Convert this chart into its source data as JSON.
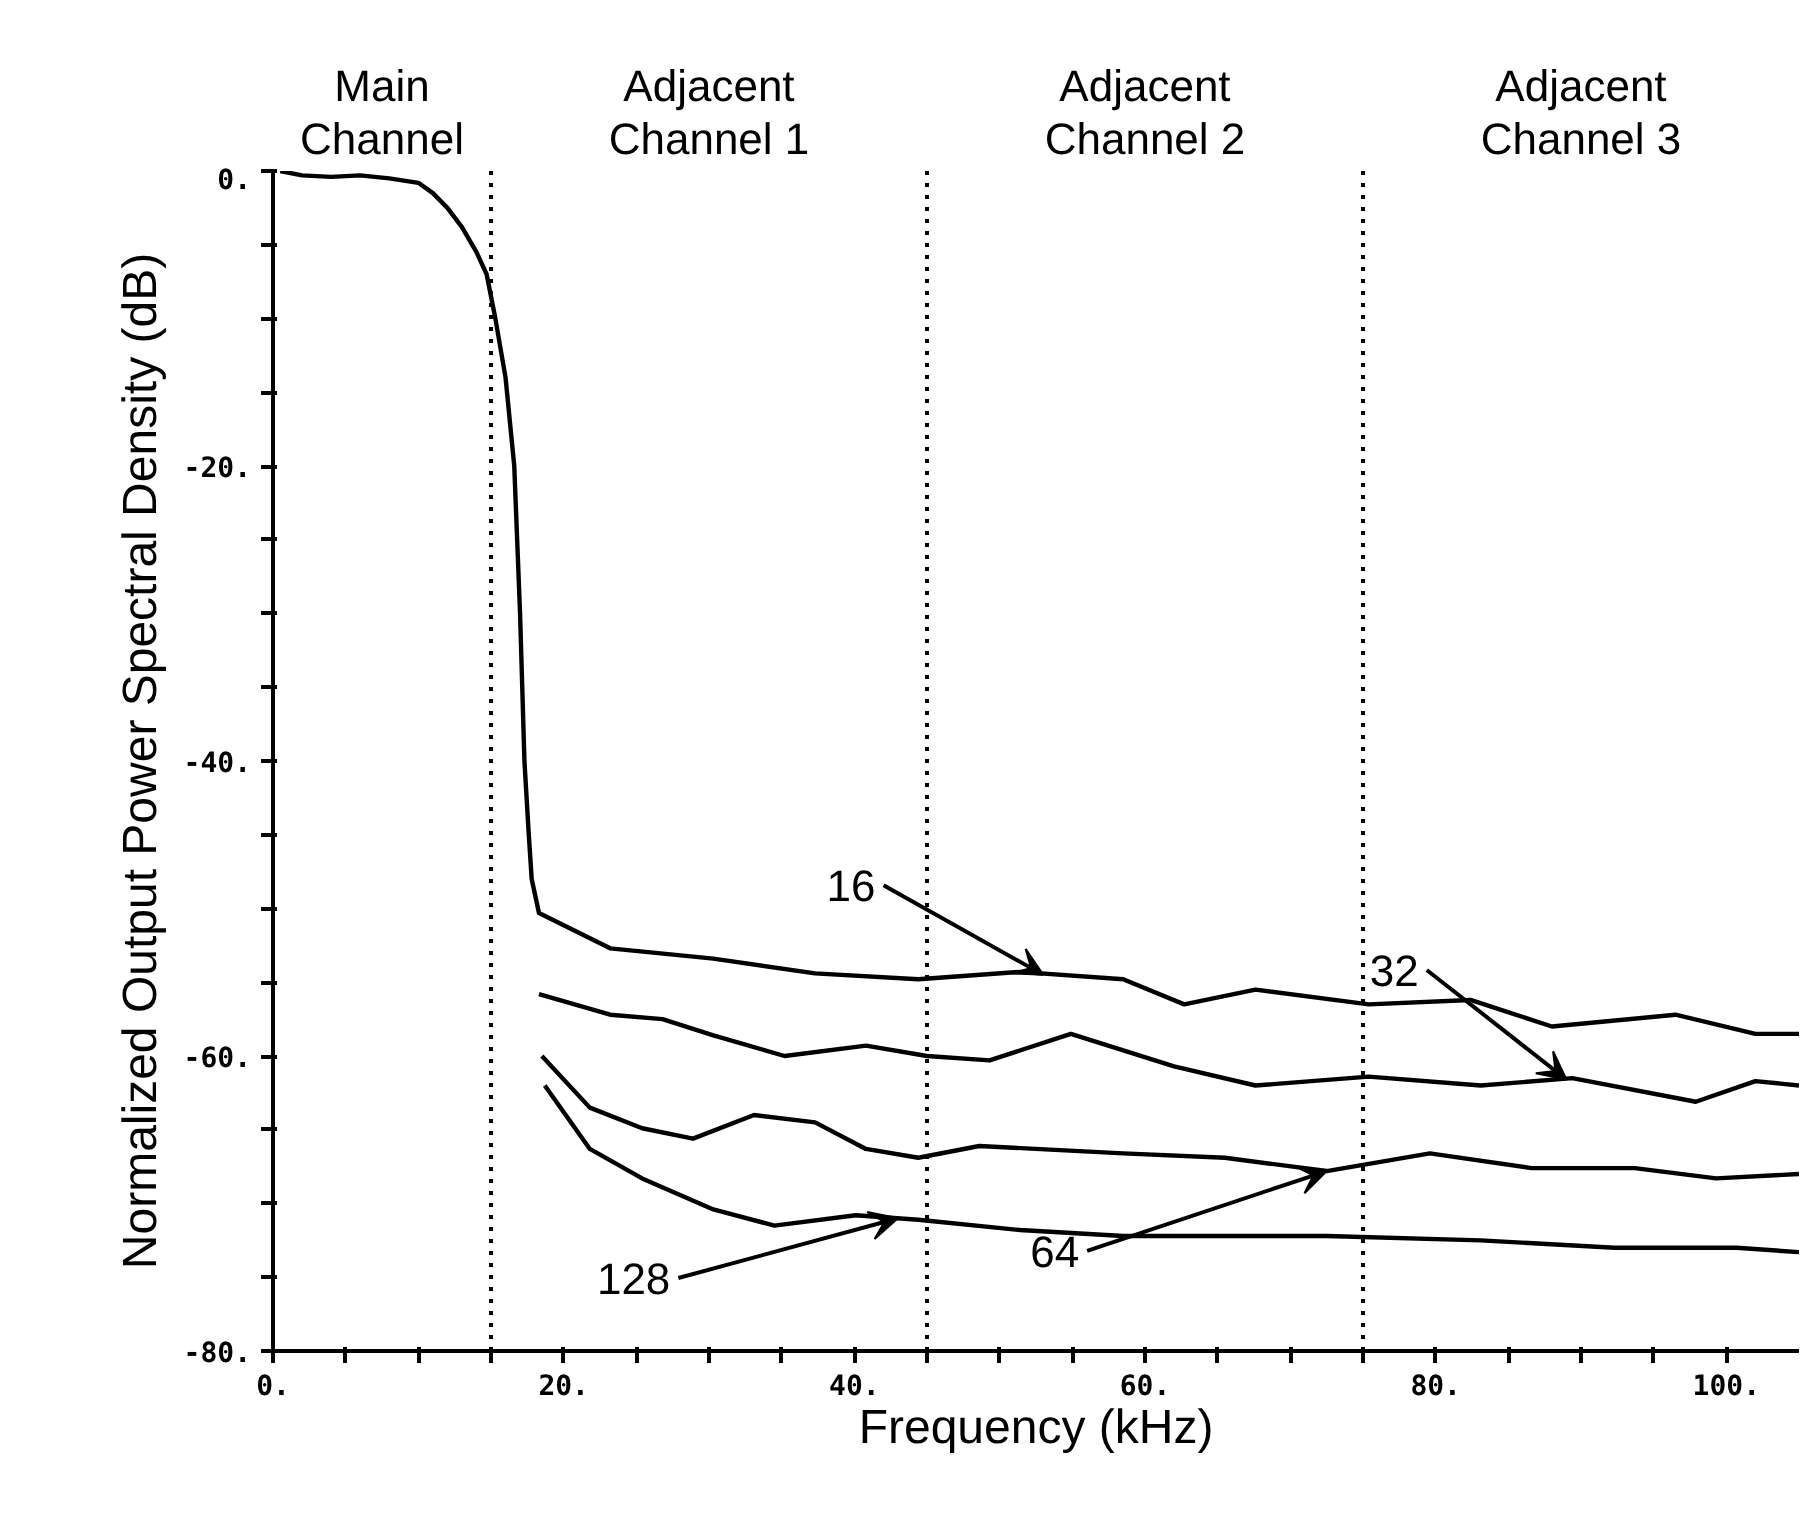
{
  "chart_data": {
    "type": "line",
    "xlabel": "Frequency (kHz)",
    "ylabel": "Normalized Output Power Spectral Density (dB)",
    "xlim": [
      0,
      105
    ],
    "ylim": [
      -80,
      0
    ],
    "xticks": [
      {
        "value": 0,
        "label": "0."
      },
      {
        "value": 5,
        "label": null
      },
      {
        "value": 10,
        "label": null
      },
      {
        "value": 15,
        "label": null
      },
      {
        "value": 20,
        "label": "20."
      },
      {
        "value": 25,
        "label": null
      },
      {
        "value": 30,
        "label": null
      },
      {
        "value": 35,
        "label": null
      },
      {
        "value": 40,
        "label": "40."
      },
      {
        "value": 45,
        "label": null
      },
      {
        "value": 50,
        "label": null
      },
      {
        "value": 55,
        "label": null
      },
      {
        "value": 60,
        "label": "60."
      },
      {
        "value": 65,
        "label": null
      },
      {
        "value": 70,
        "label": null
      },
      {
        "value": 75,
        "label": null
      },
      {
        "value": 80,
        "label": "80."
      },
      {
        "value": 85,
        "label": null
      },
      {
        "value": 90,
        "label": null
      },
      {
        "value": 95,
        "label": null
      },
      {
        "value": 100,
        "label": "100."
      }
    ],
    "yticks": [
      {
        "value": -80,
        "label": "-80."
      },
      {
        "value": -75,
        "label": null
      },
      {
        "value": -70,
        "label": null
      },
      {
        "value": -65,
        "label": null
      },
      {
        "value": -60,
        "label": "-60."
      },
      {
        "value": -55,
        "label": null
      },
      {
        "value": -50,
        "label": null
      },
      {
        "value": -45,
        "label": null
      },
      {
        "value": -40,
        "label": "-40."
      },
      {
        "value": -35,
        "label": null
      },
      {
        "value": -30,
        "label": null
      },
      {
        "value": -25,
        "label": null
      },
      {
        "value": -20,
        "label": "-20."
      },
      {
        "value": -15,
        "label": null
      },
      {
        "value": -10,
        "label": null
      },
      {
        "value": -5,
        "label": null
      },
      {
        "value": 0,
        "label": "0."
      }
    ],
    "grid": false,
    "marker": "none",
    "line_style": "solid",
    "series": [
      {
        "color": "#000000",
        "x": [
          0.5,
          2,
          4,
          6,
          8,
          10,
          11,
          12,
          13,
          14,
          14.7,
          15.3,
          16,
          16.6,
          17,
          17.3,
          17.6,
          17.8,
          18.3,
          23.2,
          30.3,
          37.3,
          44.4,
          51.4,
          58.5,
          62.7,
          67.6,
          75.4,
          82.4,
          88,
          96.5,
          102,
          105
        ],
        "values": [
          0,
          -0.3,
          -0.4,
          -0.3,
          -0.5,
          -0.8,
          -1.5,
          -2.5,
          -3.8,
          -5.5,
          -7,
          -10,
          -14,
          -20,
          -30,
          -40,
          -45,
          -48,
          -50.3,
          -52.7,
          -53.4,
          -54.4,
          -54.8,
          -54.3,
          -54.8,
          -56.5,
          -55.5,
          -56.5,
          -56.2,
          -58,
          -57.2,
          -58.5,
          -58.5
        ]
      },
      {
        "color": "#000000",
        "x": [
          18.3,
          23.2,
          26.8,
          30.3,
          35.2,
          40.8,
          45,
          49.3,
          54.9,
          62,
          67.6,
          75.4,
          83.1,
          89.4,
          97.9,
          102,
          105
        ],
        "values": [
          -55.8,
          -57.2,
          -57.5,
          -58.6,
          -60,
          -59.3,
          -60,
          -60.3,
          -58.5,
          -60.7,
          -62,
          -61.4,
          -62,
          -61.5,
          -63.1,
          -61.7,
          -62
        ]
      },
      {
        "color": "#000000",
        "x": [
          18.5,
          21.8,
          25.4,
          28.9,
          33.1,
          37.3,
          40.8,
          44.4,
          48.6,
          58.5,
          65.5,
          72.5,
          79.6,
          86.6,
          93.7,
          99.3,
          105
        ],
        "values": [
          -60,
          -63.5,
          -64.9,
          -65.6,
          -64,
          -64.5,
          -66.3,
          -66.9,
          -66.1,
          -66.6,
          -66.9,
          -67.8,
          -66.6,
          -67.6,
          -67.6,
          -68.3,
          -68
        ]
      },
      {
        "color": "#000000",
        "x": [
          18.7,
          21.8,
          25.4,
          30.3,
          34.5,
          40.1,
          44.4,
          51.4,
          58.5,
          65.5,
          72.5,
          83.1,
          92.3,
          100.7,
          105
        ],
        "values": [
          -62,
          -66.3,
          -68.3,
          -70.4,
          -71.5,
          -70.8,
          -71.1,
          -71.8,
          -72.2,
          -72.2,
          -72.2,
          -72.5,
          -73,
          -73,
          -73.3
        ]
      }
    ],
    "ref_lines": [
      {
        "axis": "x",
        "value": 15,
        "line_style": "dotted",
        "color": "#000000"
      },
      {
        "axis": "x",
        "value": 45,
        "line_style": "dotted",
        "color": "#000000"
      },
      {
        "axis": "x",
        "value": 75,
        "line_style": "dotted",
        "color": "#000000"
      }
    ],
    "annotations": [
      "Main\nChannel",
      "Adjacent\nChannel 1",
      "Adjacent\nChannel 2",
      "Adjacent\nChannel 3",
      {
        "text": "16",
        "x": 53,
        "y": -54.5
      },
      {
        "text": "32",
        "x": 89,
        "y": -61.6
      },
      {
        "text": "128",
        "x": 43,
        "y": -71
      },
      {
        "text": "64",
        "x": 72.5,
        "y": -67.8
      }
    ]
  }
}
